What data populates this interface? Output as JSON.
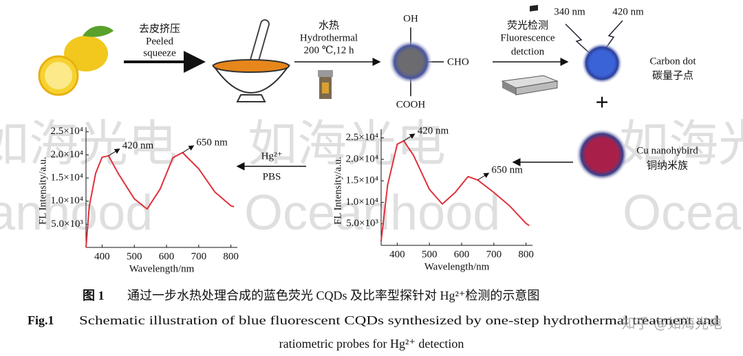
{
  "schematic": {
    "step1": {
      "zh": "去皮挤压",
      "en1": "Peeled",
      "en2": "squeeze"
    },
    "step2": {
      "zh": "水热",
      "en": "Hydrothermal",
      "cond": "200 ℃,12 h"
    },
    "groups": {
      "top": "OH",
      "right": "CHO",
      "bottom": "COOH"
    },
    "step3": {
      "zh": "荧光检测",
      "en1": "Fluorescence",
      "en2": "detction"
    },
    "excitation": "340 nm",
    "emission": "420 nm",
    "carbon_dot": {
      "en": "Carbon dot",
      "zh": "碳量子点"
    },
    "plus": "+",
    "cu": {
      "en": "Cu nanohybird",
      "zh": "铜纳米族"
    },
    "hg": {
      "ion": "Hg²⁺",
      "buffer": "PBS"
    }
  },
  "chart_data": [
    {
      "type": "line",
      "ylabel": "FL Intensity/a.u.",
      "xlabel": "Wavelength/nm",
      "x": [
        350,
        360,
        380,
        400,
        420,
        450,
        500,
        540,
        580,
        620,
        650,
        700,
        750,
        800,
        810
      ],
      "values": [
        0,
        8800,
        16000,
        19500,
        19800,
        16000,
        10500,
        8300,
        12600,
        19400,
        20500,
        17000,
        12000,
        9000,
        8800
      ],
      "color": "#e0303a",
      "xlim": [
        350,
        820
      ],
      "ylim": [
        0,
        26000
      ],
      "xticks": [
        400,
        500,
        600,
        700,
        800
      ],
      "yticks": [
        {
          "value": 5000,
          "label": "5.0×10³"
        },
        {
          "value": 10000,
          "label": "1.0×10⁴"
        },
        {
          "value": 15000,
          "label": "1.5×10⁴"
        },
        {
          "value": 20000,
          "label": "2.0×10⁴"
        },
        {
          "value": 25000,
          "label": "2.5×10⁴"
        }
      ],
      "annotations": [
        {
          "text": "420 nm",
          "x": 420
        },
        {
          "text": "650 nm",
          "x": 650
        }
      ]
    },
    {
      "type": "line",
      "ylabel": "FL Intensity/a.u.",
      "xlabel": "Wavelength/nm",
      "x": [
        350,
        370,
        400,
        420,
        450,
        500,
        540,
        580,
        620,
        650,
        700,
        750,
        800,
        810
      ],
      "values": [
        1000,
        14000,
        23500,
        24300,
        21000,
        13000,
        9600,
        12300,
        16000,
        15200,
        12300,
        9100,
        5100,
        4600
      ],
      "color": "#e0303a",
      "xlim": [
        350,
        820
      ],
      "ylim": [
        0,
        27000
      ],
      "xticks": [
        400,
        500,
        600,
        700,
        800
      ],
      "yticks": [
        {
          "value": 5000,
          "label": "5.0×10³"
        },
        {
          "value": 10000,
          "label": "1.0×10⁴"
        },
        {
          "value": 15000,
          "label": "1.5×10⁴"
        },
        {
          "value": 20000,
          "label": "2.0×10⁴"
        },
        {
          "value": 25000,
          "label": "2.5×10⁴"
        }
      ],
      "annotations": [
        {
          "text": "420 nm",
          "x": 420
        },
        {
          "text": "650 nm",
          "x": 650
        }
      ]
    }
  ],
  "caption": {
    "zh_label": "图 1",
    "zh": "通过一步水热处理合成的蓝色荧光 CQDs 及比率型探针对 Hg²⁺检测的示意图",
    "en_label": "Fig.1",
    "en1": "Schematic illustration of blue fluorescent CQDs synthesized by one-step hydrothermal treatment and",
    "en2": "ratiometric probes for Hg²⁺ detection"
  },
  "watermark": {
    "zh": "如海光电",
    "en": "Oceanhood",
    "credit": "知乎 @如海光电"
  }
}
